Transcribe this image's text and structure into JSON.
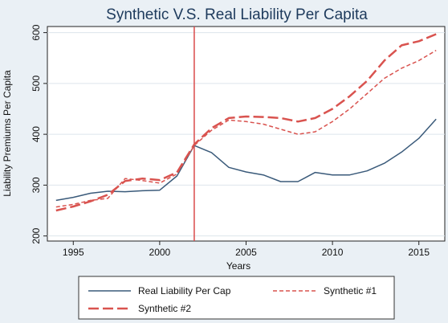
{
  "chart_data": {
    "type": "line",
    "title": "Synthetic V.S. Real Liability Per Capita",
    "xlabel": "Years",
    "ylabel": "Liability Premiums Per Capita",
    "xlim": [
      1993.5,
      2016.5
    ],
    "ylim": [
      190,
      612
    ],
    "xticks": [
      1995,
      2000,
      2005,
      2010,
      2015
    ],
    "yticks": [
      200,
      300,
      400,
      500,
      600
    ],
    "grid": "horizontal",
    "treatment_line_x": 2002,
    "legend_position": "bottom",
    "x": [
      1994,
      1995,
      1996,
      1997,
      1998,
      1999,
      2000,
      2001,
      2002,
      2003,
      2004,
      2005,
      2006,
      2007,
      2008,
      2009,
      2010,
      2011,
      2012,
      2013,
      2014,
      2015,
      2016
    ],
    "series": [
      {
        "name": "Real Liability Per Cap",
        "style": "solid",
        "color": "#3a5a7a",
        "values": [
          270,
          276,
          284,
          288,
          287,
          289,
          290,
          318,
          378,
          364,
          335,
          326,
          320,
          307,
          307,
          325,
          320,
          320,
          328,
          343,
          365,
          392,
          430
        ]
      },
      {
        "name": "Synthetic #1",
        "style": "short-dash",
        "color": "#d9534f",
        "values": [
          257,
          262,
          270,
          274,
          313,
          309,
          304,
          322,
          378,
          408,
          428,
          425,
          420,
          410,
          400,
          405,
          425,
          450,
          480,
          510,
          530,
          545,
          565
        ]
      },
      {
        "name": "Synthetic #2",
        "style": "long-dash",
        "color": "#d9534f",
        "values": [
          250,
          258,
          268,
          281,
          308,
          313,
          310,
          325,
          380,
          412,
          432,
          435,
          434,
          432,
          425,
          432,
          450,
          475,
          505,
          545,
          575,
          583,
          597
        ]
      }
    ],
    "legend": {
      "real": "Real Liability Per Cap",
      "syn1": "Synthetic #1",
      "syn2": "Synthetic #2"
    }
  }
}
